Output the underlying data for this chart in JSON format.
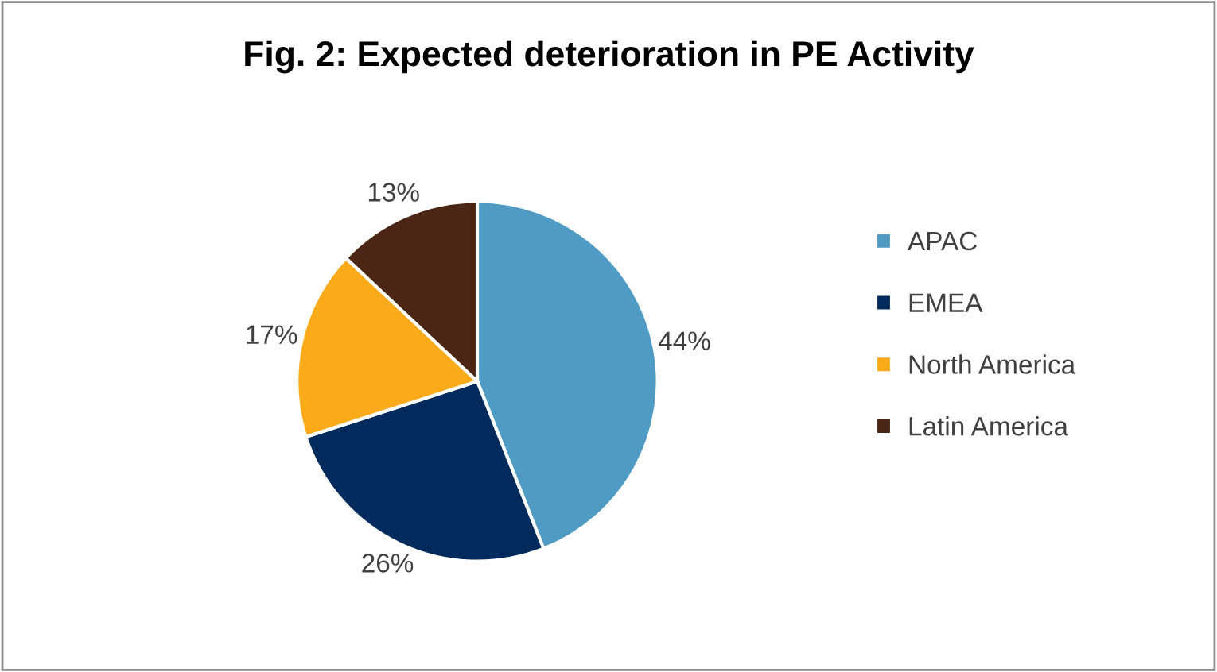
{
  "chart_data": {
    "type": "pie",
    "title": "Fig. 2: Expected deterioration in PE Activity",
    "categories": [
      "APAC",
      "EMEA",
      "North America",
      "Latin America"
    ],
    "values": [
      44,
      26,
      17,
      13
    ],
    "colors": [
      "#4f9bc3",
      "#002b5c",
      "#fbaa1a",
      "#4b2614"
    ],
    "value_labels": [
      "44%",
      "26%",
      "17%",
      "13%"
    ],
    "legend": "right"
  }
}
